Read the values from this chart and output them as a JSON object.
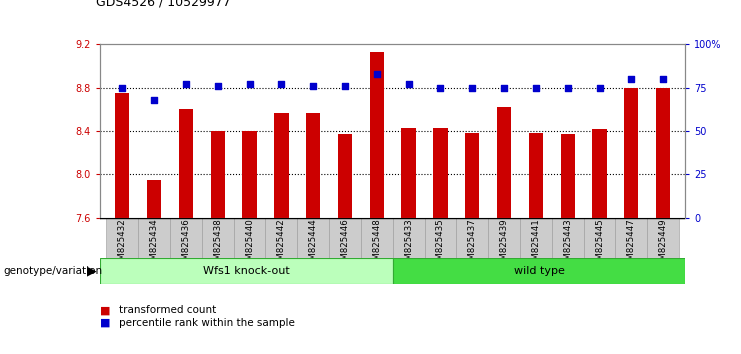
{
  "title": "GDS4526 / 10529977",
  "categories": [
    "GSM825432",
    "GSM825434",
    "GSM825436",
    "GSM825438",
    "GSM825440",
    "GSM825442",
    "GSM825444",
    "GSM825446",
    "GSM825448",
    "GSM825433",
    "GSM825435",
    "GSM825437",
    "GSM825439",
    "GSM825441",
    "GSM825443",
    "GSM825445",
    "GSM825447",
    "GSM825449"
  ],
  "bar_values": [
    8.75,
    7.95,
    8.6,
    8.4,
    8.4,
    8.57,
    8.57,
    8.37,
    9.13,
    8.43,
    8.43,
    8.38,
    8.62,
    8.38,
    8.37,
    8.42,
    8.8,
    8.8
  ],
  "percentile_values": [
    75,
    68,
    77,
    76,
    77,
    77,
    76,
    76,
    83,
    77,
    75,
    75,
    75,
    75,
    75,
    75,
    80,
    80
  ],
  "y_min": 7.6,
  "y_max": 9.2,
  "y_ticks": [
    7.6,
    8.0,
    8.4,
    8.8,
    9.2
  ],
  "right_y_tick_labels": [
    "0",
    "25",
    "50",
    "75",
    "100%"
  ],
  "right_y_ticks": [
    0,
    25,
    50,
    75,
    100
  ],
  "bar_color": "#cc0000",
  "dot_color": "#0000cc",
  "group1_label": "Wfs1 knock-out",
  "group2_label": "wild type",
  "group1_color": "#bbffbb",
  "group2_color": "#44dd44",
  "group1_count": 9,
  "group2_count": 9,
  "xlabel_left": "genotype/variation",
  "legend_items": [
    "transformed count",
    "percentile rank within the sample"
  ],
  "legend_colors": [
    "#cc0000",
    "#0000cc"
  ],
  "tick_bg_color": "#cccccc",
  "plot_bg": "#ffffff",
  "dotted_line_color": "#000000",
  "dotted_lines": [
    8.0,
    8.4,
    8.8
  ],
  "spine_color": "#888888"
}
